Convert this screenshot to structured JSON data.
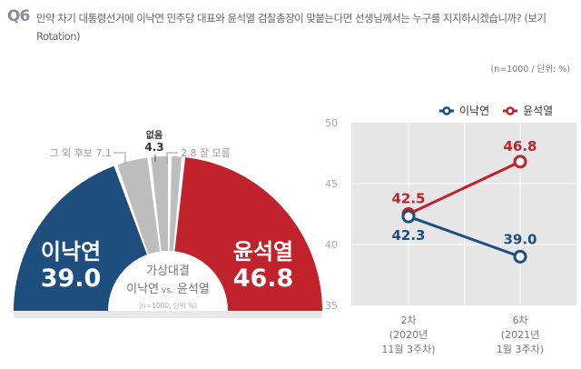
{
  "header": {
    "q_number": "Q6",
    "question": "만약 차기 대통령선거에 이낙연 민주당 대표와 윤석열 검찰총장이 맞붙는다면 선생님께서는 누구를 지지하시겠습니까? (보기 Rotation)",
    "unit_note": "(n=1000 / 단위: %)"
  },
  "colors": {
    "lee": "#1d4e7e",
    "yoon": "#c0232b",
    "other": "#bdbdbd",
    "plot_bg": "#e6e6e6"
  },
  "chart_data": [
    {
      "type": "pie",
      "shape": "half-donut",
      "slices": [
        {
          "label": "이낙연",
          "value": 39.0,
          "color": "#1d4e7e"
        },
        {
          "label": "그 외 후보",
          "value": 7.1,
          "color": "#bdbdbd"
        },
        {
          "label": "없음",
          "value": 4.3,
          "color": "#bdbdbd"
        },
        {
          "label": "잘 모름",
          "value": 2.8,
          "color": "#bdbdbd"
        },
        {
          "label": "윤석열",
          "value": 46.8,
          "color": "#c0232b"
        }
      ],
      "center_title": "가상대결",
      "center_sub_left": "이낙연",
      "center_vs": "vs.",
      "center_sub_right": "윤석열",
      "center_note": "(n=1000, 단위 %)"
    },
    {
      "type": "line",
      "categories": [
        [
          "2차",
          "(2020년",
          "11월 3주차)"
        ],
        [
          "6차",
          "(2021년",
          "1월 3주차)"
        ]
      ],
      "series": [
        {
          "name": "이낙연",
          "values": [
            42.3,
            39.0
          ],
          "color": "#1d4e7e"
        },
        {
          "name": "윤석열",
          "values": [
            42.5,
            46.8
          ],
          "color": "#c0232b"
        }
      ],
      "ylim": [
        35,
        50
      ],
      "yticks": [
        35,
        40,
        45,
        50
      ],
      "grid": true,
      "legend": "top-right"
    }
  ]
}
